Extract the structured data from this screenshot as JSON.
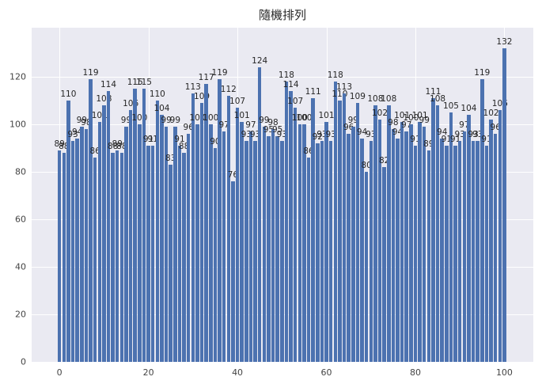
{
  "title": "隨機排列",
  "chart_data": {
    "type": "bar",
    "title": "隨機排列",
    "xlabel": "",
    "ylabel": "",
    "x_start": 0,
    "x": [
      0,
      1,
      2,
      3,
      4,
      5,
      6,
      7,
      8,
      9,
      10,
      11,
      12,
      13,
      14,
      15,
      16,
      17,
      18,
      19,
      20,
      21,
      22,
      23,
      24,
      25,
      26,
      27,
      28,
      29,
      30,
      31,
      32,
      33,
      34,
      35,
      36,
      37,
      38,
      39,
      40,
      41,
      42,
      43,
      44,
      45,
      46,
      47,
      48,
      49,
      50,
      51,
      52,
      53,
      54,
      55,
      56,
      57,
      58,
      59,
      60,
      61,
      62,
      63,
      64,
      65,
      66,
      67,
      68,
      69,
      70,
      71,
      72,
      73,
      74,
      75,
      76,
      77,
      78,
      79,
      80,
      81,
      82,
      83,
      84,
      85,
      86,
      87,
      88,
      89,
      90,
      91,
      92,
      93,
      94,
      95,
      96,
      97,
      98,
      99,
      100
    ],
    "values": [
      89,
      88,
      110,
      93,
      94,
      99,
      98,
      119,
      86,
      101,
      108,
      114,
      88,
      89,
      88,
      99,
      106,
      115,
      100,
      115,
      91,
      91,
      110,
      104,
      99,
      83,
      99,
      91,
      88,
      96,
      113,
      100,
      109,
      117,
      100,
      90,
      119,
      97,
      112,
      76,
      107,
      101,
      93,
      97,
      93,
      124,
      99,
      95,
      98,
      95,
      93,
      118,
      114,
      107,
      100,
      100,
      86,
      111,
      92,
      93,
      101,
      93,
      118,
      110,
      113,
      96,
      99,
      109,
      94,
      80,
      93,
      108,
      102,
      82,
      108,
      98,
      94,
      101,
      97,
      100,
      91,
      101,
      99,
      89,
      111,
      108,
      94,
      91,
      105,
      91,
      93,
      97,
      104,
      93,
      93,
      119,
      91,
      102,
      96,
      106,
      132
    ],
    "value_labels_shown": true,
    "xticks": [
      0,
      20,
      40,
      60,
      80,
      100
    ],
    "yticks": [
      0,
      20,
      40,
      60,
      80,
      100,
      120
    ],
    "ylim": [
      0,
      140.7
    ],
    "xlim": [
      -6.25,
      106.5
    ],
    "grid": true,
    "legend": "none",
    "bar_color": "#4c72b0",
    "plot_background": "#eaeaf2",
    "figure_background": "#ffffff",
    "gridline_color": "#ffffff",
    "tick_label_color": "#444444",
    "annotation_color": "#262626"
  }
}
